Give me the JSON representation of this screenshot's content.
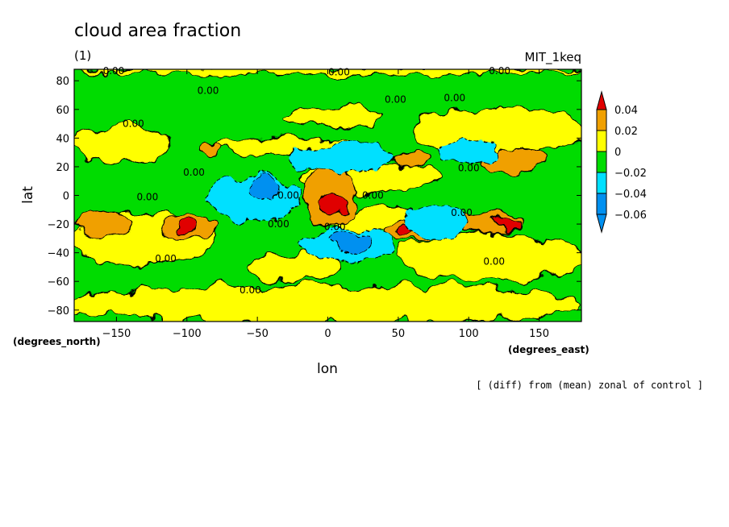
{
  "chart_data": {
    "type": "heatmap",
    "title": "cloud area fraction",
    "panel_label": "(1)",
    "model_label": "MIT_1keq",
    "xlabel": "lon",
    "ylabel": "lat",
    "x_unit": "(degrees_east)",
    "y_unit": "(degrees_north)",
    "note": "[ (diff) from (mean) zonal of control ]",
    "xlim": [
      -180,
      180
    ],
    "ylim": [
      -88,
      88
    ],
    "x_ticks": [
      -150,
      -100,
      -50,
      0,
      50,
      100,
      150
    ],
    "y_ticks": [
      80,
      60,
      40,
      20,
      0,
      -20,
      -40,
      -60,
      -80
    ],
    "x_tick_labels": [
      "−150",
      "−100",
      "−50",
      "0",
      "50",
      "100",
      "150"
    ],
    "y_tick_labels": [
      "80",
      "60",
      "40",
      "20",
      "0",
      "−20",
      "−40",
      "−60",
      "−80"
    ],
    "grid": false,
    "background_level_color": "#00dc00",
    "levels": [
      {
        "label": "0.04",
        "lower": 0.04,
        "color": "#e00000"
      },
      {
        "label": "0.02",
        "lower": 0.02,
        "color": "#f0a000"
      },
      {
        "label": "0",
        "lower": 0,
        "color": "#ffff00"
      },
      {
        "label": "−0.02",
        "lower": -0.02,
        "color": "#00dc00"
      },
      {
        "label": "−0.04",
        "lower": -0.04,
        "color": "#00e0ff"
      },
      {
        "label": "−0.06",
        "lower": -0.06,
        "color": "#0090f0"
      }
    ],
    "colorbar_labels": [
      "0.04",
      "0.02",
      "0",
      "−0.02",
      "−0.04",
      "−0.06"
    ],
    "contour_label_text": "0.00",
    "contour_label_positions": [
      {
        "lon": -152,
        "lat": 87
      },
      {
        "lon": 8,
        "lat": 86
      },
      {
        "lon": 122,
        "lat": 87
      },
      {
        "lon": -85,
        "lat": 73
      },
      {
        "lon": 48,
        "lat": 67
      },
      {
        "lon": 90,
        "lat": 68
      },
      {
        "lon": -138,
        "lat": 50
      },
      {
        "lon": -95,
        "lat": 16
      },
      {
        "lon": -128,
        "lat": -1
      },
      {
        "lon": -28,
        "lat": 0
      },
      {
        "lon": 32,
        "lat": 0
      },
      {
        "lon": 100,
        "lat": 19
      },
      {
        "lon": -35,
        "lat": -20
      },
      {
        "lon": 5,
        "lat": -22
      },
      {
        "lon": 95,
        "lat": -12
      },
      {
        "lon": -115,
        "lat": -44
      },
      {
        "lon": 118,
        "lat": -46
      },
      {
        "lon": -55,
        "lat": -66
      }
    ],
    "regions": [
      {
        "level": 0,
        "lon": [
          -182,
          182
        ],
        "lat": [
          -90,
          -62
        ]
      },
      {
        "level": 0,
        "lon": [
          -182,
          182
        ],
        "lat": [
          90,
          84
        ]
      },
      {
        "level": 0,
        "lon": [
          -182,
          -112
        ],
        "lat": [
          48,
          22
        ]
      },
      {
        "level": 0,
        "lon": [
          -182,
          -80
        ],
        "lat": [
          -12,
          -48
        ]
      },
      {
        "level": 0,
        "lon": [
          -85,
          20
        ],
        "lat": [
          40,
          28
        ]
      },
      {
        "level": 0,
        "lon": [
          -18,
          80
        ],
        "lat": [
          22,
          2
        ]
      },
      {
        "level": 0,
        "lon": [
          60,
          182
        ],
        "lat": [
          62,
          28
        ]
      },
      {
        "level": 0,
        "lon": [
          -55,
          10
        ],
        "lat": [
          -40,
          -60
        ]
      },
      {
        "level": 0,
        "lon": [
          50,
          182
        ],
        "lat": [
          -26,
          -60
        ]
      },
      {
        "level": 0,
        "lon": [
          -30,
          40
        ],
        "lat": [
          62,
          48
        ]
      },
      {
        "level": 0,
        "lon": [
          -10,
          70
        ],
        "lat": [
          -8,
          -26
        ]
      },
      {
        "level": 0.02,
        "lon": [
          -182,
          -140
        ],
        "lat": [
          -12,
          -30
        ]
      },
      {
        "level": 0.02,
        "lon": [
          -118,
          -80
        ],
        "lat": [
          -14,
          -30
        ]
      },
      {
        "level": 0.02,
        "lon": [
          -90,
          -78
        ],
        "lat": [
          36,
          28
        ]
      },
      {
        "level": 0.02,
        "lon": [
          -18,
          20
        ],
        "lat": [
          18,
          -22
        ]
      },
      {
        "level": 0.02,
        "lon": [
          40,
          75
        ],
        "lat": [
          -16,
          -32
        ]
      },
      {
        "level": 0.02,
        "lon": [
          90,
          140
        ],
        "lat": [
          -12,
          -26
        ]
      },
      {
        "level": 0.02,
        "lon": [
          110,
          152
        ],
        "lat": [
          32,
          14
        ]
      },
      {
        "level": 0.02,
        "lon": [
          45,
          72
        ],
        "lat": [
          32,
          20
        ]
      },
      {
        "level": 0.04,
        "lon": [
          -8,
          14
        ],
        "lat": [
          4,
          -14
        ]
      },
      {
        "level": 0.04,
        "lon": [
          116,
          138
        ],
        "lat": [
          -16,
          -24
        ]
      },
      {
        "level": 0.04,
        "lon": [
          -105,
          -95
        ],
        "lat": [
          -18,
          -26
        ]
      },
      {
        "level": 0.04,
        "lon": [
          50,
          60
        ],
        "lat": [
          -20,
          -28
        ]
      },
      {
        "level": -0.04,
        "lon": [
          -25,
          45
        ],
        "lat": [
          36,
          16
        ]
      },
      {
        "level": -0.04,
        "lon": [
          -85,
          -20
        ],
        "lat": [
          14,
          -20
        ]
      },
      {
        "level": -0.04,
        "lon": [
          -20,
          50
        ],
        "lat": [
          -24,
          -46
        ]
      },
      {
        "level": -0.04,
        "lon": [
          55,
          100
        ],
        "lat": [
          -6,
          -30
        ]
      },
      {
        "level": -0.04,
        "lon": [
          80,
          120
        ],
        "lat": [
          40,
          22
        ]
      },
      {
        "level": -0.06,
        "lon": [
          -55,
          -35
        ],
        "lat": [
          12,
          -2
        ]
      },
      {
        "level": -0.06,
        "lon": [
          0,
          30
        ],
        "lat": [
          -26,
          -40
        ]
      }
    ]
  }
}
